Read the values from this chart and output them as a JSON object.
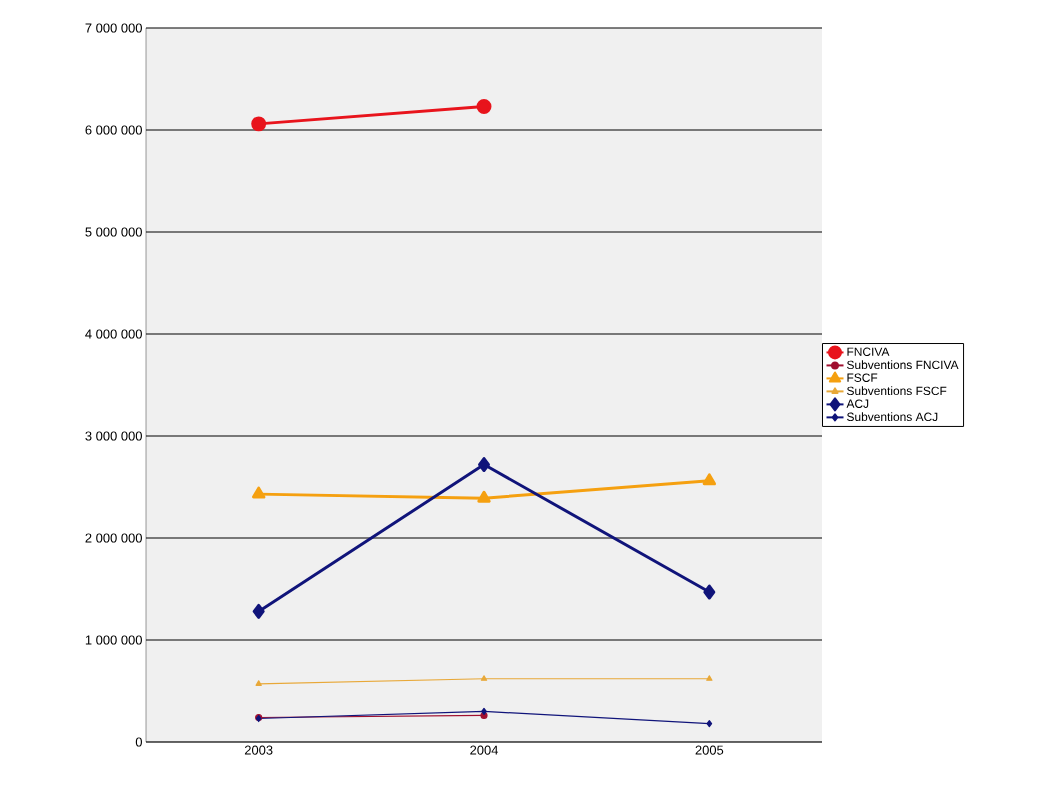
{
  "chart_data": {
    "type": "line",
    "categories": [
      "2003",
      "2004",
      "2005"
    ],
    "series": [
      {
        "name": "FNCIVA",
        "color": "#e8141c",
        "values": [
          6060000,
          6230000,
          null
        ],
        "marker": "circle"
      },
      {
        "name": "Subventions FNCIVA",
        "color": "#a01030",
        "values": [
          240000,
          260000,
          null
        ],
        "marker": "circle"
      },
      {
        "name": "FSCF",
        "color": "#f5a010",
        "values": [
          2430000,
          2390000,
          2560000
        ],
        "marker": "triangle"
      },
      {
        "name": "Subventions FSCF",
        "color": "#e8a838",
        "values": [
          570000,
          620000,
          620000
        ],
        "marker": "triangle"
      },
      {
        "name": "ACJ",
        "color": "#10147a",
        "values": [
          1280000,
          2720000,
          1470000
        ],
        "marker": "diamond"
      },
      {
        "name": "Subventions ACJ",
        "color": "#10147a",
        "values": [
          230000,
          300000,
          180000
        ],
        "marker": "diamond"
      }
    ],
    "ylim": [
      0,
      7000000
    ],
    "yticks": [
      0,
      {
        "value": 1000000,
        "label": "1 000 000"
      },
      {
        "value": 2000000,
        "label": "2 000 000"
      },
      {
        "value": 3000000,
        "label": "3 000 000"
      },
      {
        "value": 4000000,
        "label": "4 000 000"
      },
      {
        "value": 5000000,
        "label": "5 000 000"
      },
      {
        "value": 6000000,
        "label": "6 000 000"
      },
      {
        "value": 7000000,
        "label": "7 000 000"
      }
    ],
    "grid": "y",
    "legend": "right",
    "line_style": "solid"
  }
}
